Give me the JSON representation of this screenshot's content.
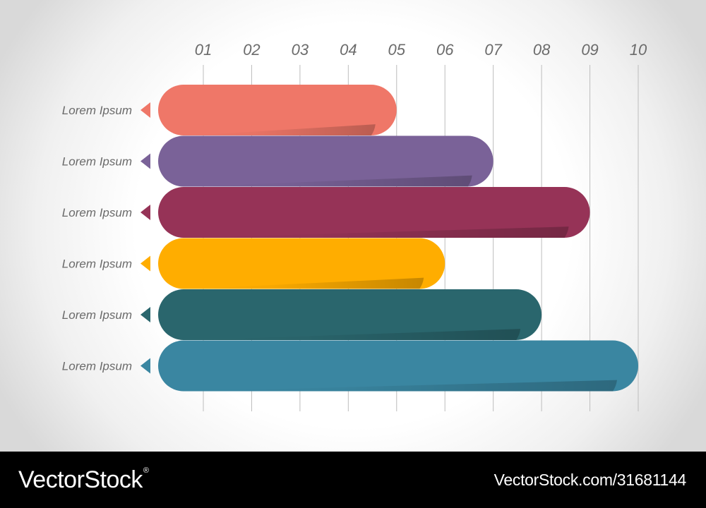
{
  "chart_data": {
    "type": "bar",
    "orientation": "horizontal",
    "title": "",
    "xlabel": "",
    "ylabel": "",
    "x_ticks": [
      "01",
      "02",
      "03",
      "04",
      "05",
      "06",
      "07",
      "08",
      "09",
      "10"
    ],
    "xlim": [
      1,
      10
    ],
    "grid": true,
    "categories": [
      "Lorem Ipsum",
      "Lorem Ipsum",
      "Lorem Ipsum",
      "Lorem Ipsum",
      "Lorem Ipsum",
      "Lorem Ipsum"
    ],
    "values": [
      5,
      7,
      9,
      6,
      8,
      10
    ],
    "colors": [
      "#ef7768",
      "#7a6298",
      "#963357",
      "#ffad00",
      "#2a666d",
      "#3a86a1"
    ]
  },
  "footer": {
    "brand": "VectorStock",
    "brand_mark": "®",
    "url": "VectorStock.com/31681144"
  }
}
